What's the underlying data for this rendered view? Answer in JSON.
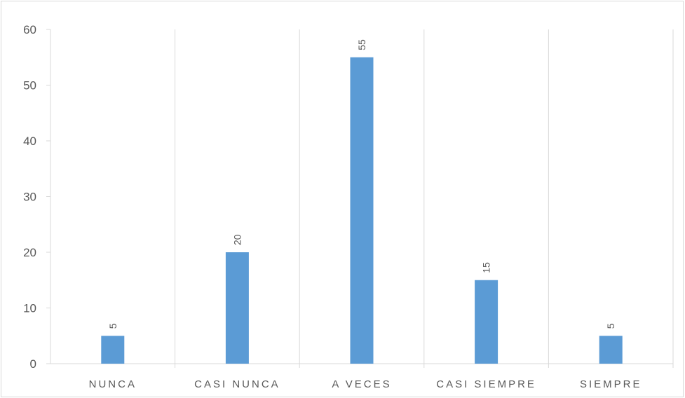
{
  "chart_data": {
    "type": "bar",
    "categories": [
      "NUNCA",
      "CASI NUNCA",
      "A VECES",
      "CASI SIEMPRE",
      "SIEMPRE"
    ],
    "values": [
      5,
      20,
      55,
      15,
      5
    ],
    "data_labels": [
      "5",
      "20",
      "55",
      "15",
      "5"
    ],
    "ylim": [
      0,
      60
    ],
    "yticks": [
      0,
      10,
      20,
      30,
      40,
      50,
      60
    ],
    "ytick_labels": [
      "0",
      "10",
      "20",
      "30",
      "40",
      "50",
      "60"
    ],
    "bar_color": "#5b9bd5",
    "grid": "vertical category separators",
    "legend": "none"
  }
}
